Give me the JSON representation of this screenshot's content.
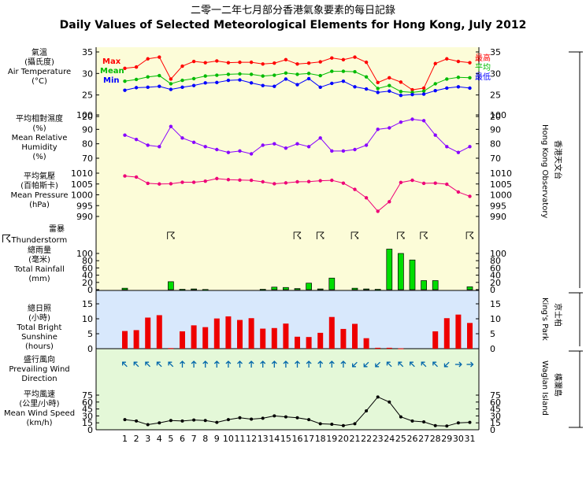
{
  "title_cn": "二零一二年七月部分香港氣象要素的每日記錄",
  "title_en": "Daily Values of Selected Meteorological Elements for Hong Kong, July 2012",
  "labels": {
    "temp_cn1": "氣溫",
    "temp_cn2": "(攝氏度)",
    "temp_en": "Air Temperature",
    "temp_unit": "(°C)",
    "hum_cn": "平均相對濕度",
    "hum_unit_cn": "(%)",
    "hum_en1": "Mean Relative",
    "hum_en2": "Humidity",
    "hum_unit": "(%)",
    "pres_cn1": "平均氣壓",
    "pres_cn2": "(百帕斯卡)",
    "pres_en": "Mean Pressure",
    "pres_unit": "(hPa)",
    "thunder_cn": "雷暴",
    "thunder_en": "Thunderstorm",
    "rain_cn1": "總雨量",
    "rain_cn2": "(毫米)",
    "rain_en": "Total Rainfall",
    "rain_unit": "(mm)",
    "sun_cn1": "總日照",
    "sun_cn2": "(小時)",
    "sun_en1": "Total Bright",
    "sun_en2": "Sunshine",
    "sun_unit": "(hours)",
    "wind_cn": "盛行風向",
    "wind_en1": "Prevailing Wind",
    "wind_en2": "Direction",
    "speed_cn1": "平均風速",
    "speed_cn2": "(公里/小時)",
    "speed_en": "Mean Wind Speed",
    "speed_unit": "(km/h)"
  },
  "legend": {
    "max_en": "Max",
    "mean_en": "Mean",
    "min_en": "Min",
    "max_cn": "最高",
    "mean_cn": "平均",
    "min_cn": "最低"
  },
  "stations": {
    "hko_en": "Hong Kong Observatory",
    "hko_cn": "香港天文台",
    "kp_en": "King's Park",
    "kp_cn": "京士柏",
    "wi_en": "Waglan Island",
    "wi_cn": "橫瀾島"
  },
  "colors": {
    "max": "#ff0000",
    "mean": "#00bb00",
    "min": "#0000ff",
    "humidity": "#8800ff",
    "pressure": "#ee0077",
    "rain": "#00dd00",
    "sun": "#ee0000",
    "speed": "#000000",
    "wind": "#0066aa",
    "bg_yellow": "#fcfcd8",
    "bg_blue": "#d8e8fc",
    "bg_green": "#e4f8d8"
  },
  "chart_data": {
    "type": "line",
    "days": [
      1,
      2,
      3,
      4,
      5,
      6,
      7,
      8,
      9,
      10,
      11,
      12,
      13,
      14,
      15,
      16,
      17,
      18,
      19,
      20,
      21,
      22,
      23,
      24,
      25,
      26,
      27,
      28,
      29,
      30,
      31
    ],
    "temperature": {
      "yticks": [
        20,
        25,
        30,
        35
      ],
      "max": [
        31.2,
        31.5,
        33.4,
        33.8,
        28.7,
        31.7,
        32.8,
        32.5,
        32.9,
        32.5,
        32.6,
        32.6,
        32.2,
        32.4,
        33.2,
        32.2,
        32.4,
        32.7,
        33.6,
        33.2,
        33.8,
        32.6,
        27.9,
        29.0,
        28.0,
        26.2,
        26.6,
        32.3,
        33.4,
        32.8,
        32.5
      ],
      "mean": [
        28.2,
        28.6,
        29.2,
        29.5,
        27.6,
        28.4,
        28.8,
        29.4,
        29.6,
        29.8,
        29.9,
        29.8,
        29.4,
        29.6,
        30.1,
        29.8,
        30.0,
        29.5,
        30.5,
        30.5,
        30.4,
        29.2,
        26.5,
        27.2,
        25.8,
        25.6,
        25.9,
        27.6,
        28.7,
        29.1,
        29.0
      ],
      "min": [
        26.1,
        26.7,
        26.8,
        27.0,
        26.3,
        26.8,
        27.2,
        27.8,
        27.9,
        28.4,
        28.5,
        27.8,
        27.2,
        27.0,
        28.7,
        27.4,
        28.8,
        26.8,
        27.7,
        28.2,
        26.9,
        26.4,
        25.6,
        25.9,
        24.9,
        25.1,
        25.2,
        26.0,
        26.6,
        26.9,
        26.6
      ]
    },
    "humidity": {
      "yticks": [
        70,
        80,
        90,
        100
      ],
      "values": [
        86,
        83,
        79,
        78,
        92,
        84,
        81,
        78,
        76,
        74,
        75,
        73,
        79,
        80,
        77,
        80,
        78,
        84,
        75,
        75,
        76,
        79,
        90,
        91,
        95,
        97,
        96,
        86,
        78,
        74,
        78
      ]
    },
    "pressure": {
      "yticks": [
        990,
        995,
        1000,
        1005,
        1010
      ],
      "values": [
        1008.7,
        1008.2,
        1005.3,
        1005.0,
        1005.1,
        1005.8,
        1005.8,
        1006.3,
        1007.5,
        1007.0,
        1006.8,
        1006.7,
        1006.0,
        1005.1,
        1005.5,
        1006.0,
        1006.1,
        1006.5,
        1006.7,
        1005.4,
        1002.5,
        998.6,
        992.4,
        996.8,
        1005.7,
        1006.7,
        1005.3,
        1005.4,
        1004.9,
        1001.3,
        999.3
      ]
    },
    "thunderstorm_days": [
      5,
      16,
      18,
      21,
      25,
      27,
      31
    ],
    "rainfall": {
      "yticks": [
        0,
        20,
        40,
        60,
        80,
        100
      ],
      "values": [
        4,
        0,
        0,
        0,
        22,
        1,
        2,
        0.5,
        0,
        0,
        0,
        0,
        1,
        7,
        6,
        3,
        18,
        2,
        32,
        0,
        4,
        2,
        1,
        112,
        100,
        82,
        25,
        25,
        0,
        0,
        8
      ]
    },
    "sunshine": {
      "yticks": [
        0,
        5,
        10,
        15
      ],
      "values": [
        5.9,
        6.2,
        10.4,
        11.2,
        0.2,
        5.8,
        7.8,
        7.2,
        10.1,
        10.8,
        9.6,
        10.2,
        6.7,
        6.9,
        8.4,
        4.0,
        3.9,
        5.3,
        10.6,
        6.6,
        8.3,
        3.5,
        0.3,
        0.3,
        0.1,
        0,
        0,
        5.8,
        10.2,
        11.4,
        8.6
      ]
    },
    "wind_direction_deg": [
      315,
      315,
      315,
      315,
      315,
      0,
      0,
      0,
      0,
      0,
      0,
      0,
      0,
      0,
      0,
      0,
      0,
      0,
      0,
      0,
      225,
      225,
      225,
      315,
      315,
      315,
      315,
      315,
      225,
      90,
      90
    ],
    "wind_speed": {
      "yticks": [
        0,
        15,
        30,
        45,
        60,
        75
      ],
      "values": [
        22,
        19,
        11,
        15,
        20,
        19,
        21,
        20,
        16,
        22,
        26,
        23,
        25,
        30,
        28,
        26,
        22,
        13,
        12,
        9,
        13,
        41,
        71,
        60,
        28,
        19,
        17,
        9,
        8,
        15,
        16
      ]
    }
  }
}
